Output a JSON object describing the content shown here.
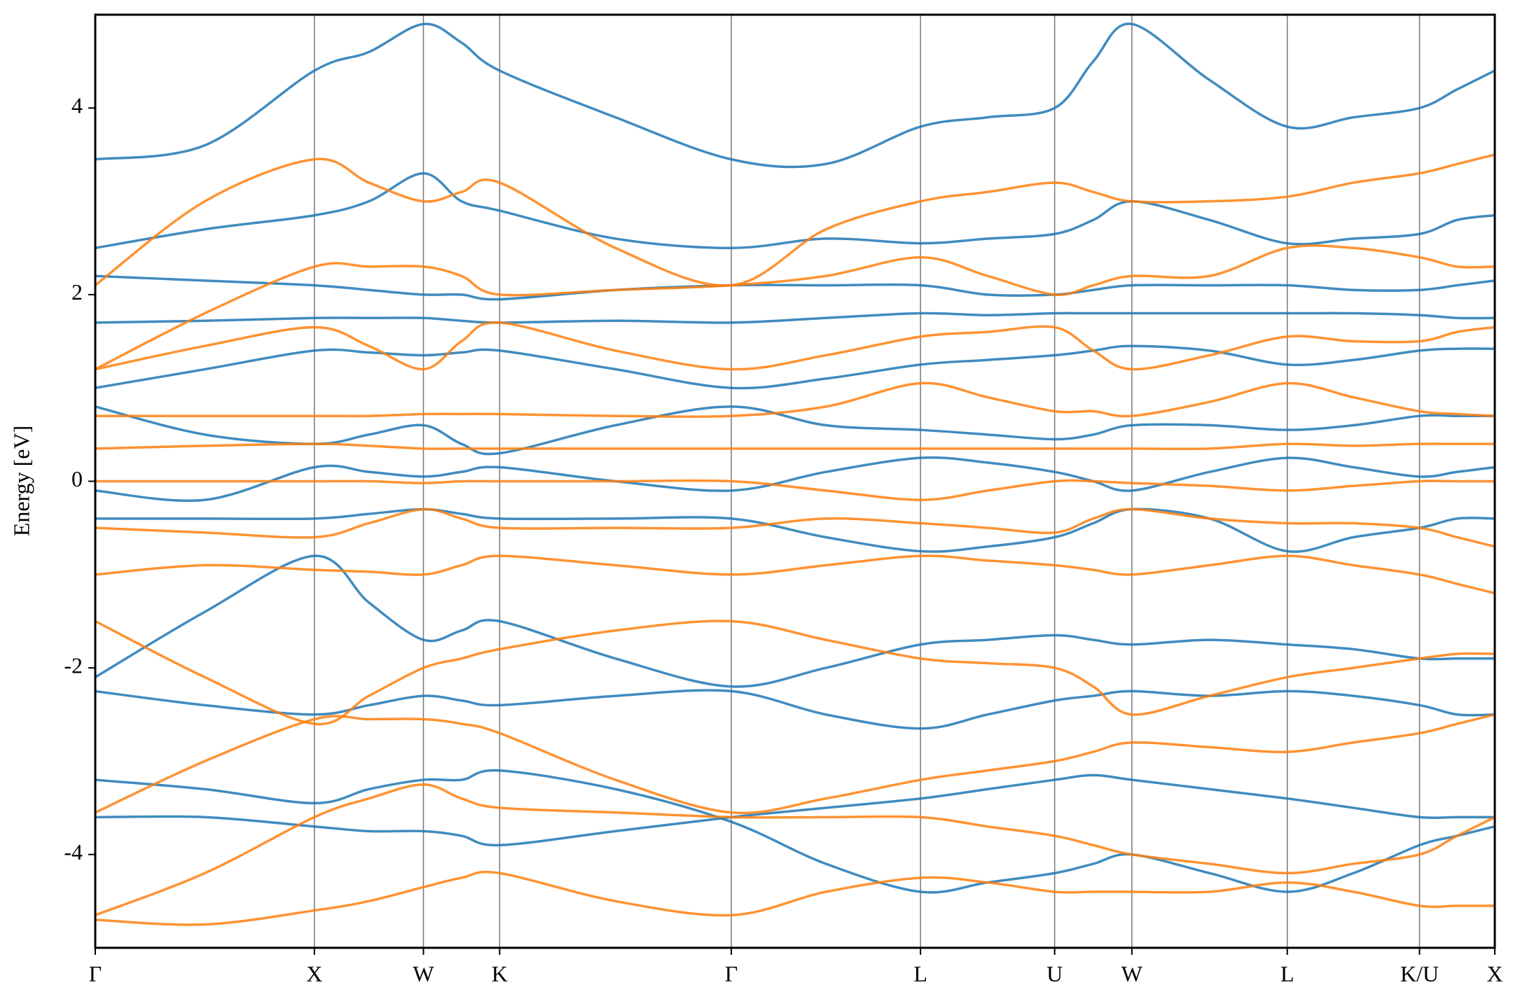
{
  "chart_data": {
    "type": "line",
    "ylabel": "Energy [eV]",
    "x": [
      0,
      1.135,
      2.27,
      2.835,
      3.4,
      3.795,
      4.19,
      5.39,
      6.59,
      7.57,
      8.55,
      9.245,
      9.94,
      10.34,
      10.74,
      11.545,
      12.35,
      13.035,
      13.72,
      14.11,
      14.5
    ],
    "xlim": [
      0,
      14.5
    ],
    "xticks": [
      {
        "value": 0,
        "label": "Γ"
      },
      {
        "value": 2.27,
        "label": "X"
      },
      {
        "value": 3.4,
        "label": "W"
      },
      {
        "value": 4.19,
        "label": "K"
      },
      {
        "value": 6.59,
        "label": "Γ"
      },
      {
        "value": 8.55,
        "label": "L"
      },
      {
        "value": 9.94,
        "label": "U"
      },
      {
        "value": 10.74,
        "label": "W"
      },
      {
        "value": 12.35,
        "label": "L"
      },
      {
        "value": 13.72,
        "label": "K/U"
      },
      {
        "value": 14.5,
        "label": "X"
      }
    ],
    "ylim": [
      -5,
      5
    ],
    "yticks": [
      -4,
      -2,
      0,
      2,
      4
    ],
    "grid": true,
    "series": [
      {
        "color": "#1f77b4",
        "values": [
          3.45,
          3.6,
          4.4,
          4.6,
          4.9,
          4.7,
          4.4,
          3.9,
          3.45,
          3.4,
          3.8,
          3.9,
          4.0,
          4.5,
          4.9,
          4.3,
          3.8,
          3.9,
          4.0,
          4.2,
          4.4
        ]
      },
      {
        "color": "#1f77b4",
        "values": [
          2.5,
          2.7,
          2.85,
          3.0,
          3.3,
          3.0,
          2.9,
          2.6,
          2.5,
          2.6,
          2.55,
          2.6,
          2.65,
          2.8,
          3.0,
          2.8,
          2.55,
          2.6,
          2.65,
          2.8,
          2.85
        ]
      },
      {
        "color": "#1f77b4",
        "values": [
          2.2,
          2.15,
          2.1,
          2.05,
          2.0,
          2.0,
          1.95,
          2.05,
          2.1,
          2.1,
          2.1,
          2.0,
          2.0,
          2.05,
          2.1,
          2.1,
          2.1,
          2.05,
          2.05,
          2.1,
          2.15
        ]
      },
      {
        "color": "#1f77b4",
        "values": [
          1.7,
          1.72,
          1.75,
          1.75,
          1.75,
          1.72,
          1.7,
          1.72,
          1.7,
          1.75,
          1.8,
          1.78,
          1.8,
          1.8,
          1.8,
          1.8,
          1.8,
          1.8,
          1.78,
          1.75,
          1.75
        ]
      },
      {
        "color": "#1f77b4",
        "values": [
          1.0,
          1.2,
          1.4,
          1.38,
          1.35,
          1.38,
          1.4,
          1.2,
          1.0,
          1.1,
          1.25,
          1.3,
          1.35,
          1.4,
          1.45,
          1.4,
          1.25,
          1.3,
          1.4,
          1.42,
          1.42
        ]
      },
      {
        "color": "#1f77b4",
        "values": [
          0.8,
          0.5,
          0.4,
          0.5,
          0.6,
          0.4,
          0.3,
          0.6,
          0.8,
          0.6,
          0.55,
          0.5,
          0.45,
          0.5,
          0.6,
          0.6,
          0.55,
          0.6,
          0.7,
          0.7,
          0.7
        ]
      },
      {
        "color": "#1f77b4",
        "values": [
          -0.1,
          -0.2,
          0.15,
          0.1,
          0.05,
          0.1,
          0.15,
          0.0,
          -0.1,
          0.1,
          0.25,
          0.2,
          0.1,
          0.0,
          -0.1,
          0.1,
          0.25,
          0.15,
          0.05,
          0.1,
          0.15
        ]
      },
      {
        "color": "#1f77b4",
        "values": [
          -0.4,
          -0.4,
          -0.4,
          -0.35,
          -0.3,
          -0.35,
          -0.4,
          -0.4,
          -0.4,
          -0.6,
          -0.75,
          -0.7,
          -0.6,
          -0.45,
          -0.3,
          -0.4,
          -0.75,
          -0.6,
          -0.5,
          -0.4,
          -0.4
        ]
      },
      {
        "color": "#1f77b4",
        "values": [
          -2.1,
          -1.4,
          -0.8,
          -1.3,
          -1.7,
          -1.6,
          -1.5,
          -1.9,
          -2.2,
          -2.0,
          -1.75,
          -1.7,
          -1.65,
          -1.7,
          -1.75,
          -1.7,
          -1.75,
          -1.8,
          -1.9,
          -1.9,
          -1.9
        ]
      },
      {
        "color": "#1f77b4",
        "values": [
          -2.25,
          -2.4,
          -2.5,
          -2.4,
          -2.3,
          -2.35,
          -2.4,
          -2.3,
          -2.25,
          -2.5,
          -2.65,
          -2.5,
          -2.35,
          -2.3,
          -2.25,
          -2.3,
          -2.25,
          -2.3,
          -2.4,
          -2.5,
          -2.5
        ]
      },
      {
        "color": "#1f77b4",
        "values": [
          -3.6,
          -3.6,
          -3.7,
          -3.75,
          -3.75,
          -3.8,
          -3.9,
          -3.75,
          -3.6,
          -3.5,
          -3.4,
          -3.3,
          -3.2,
          -3.15,
          -3.2,
          -3.3,
          -3.4,
          -3.5,
          -3.6,
          -3.6,
          -3.6
        ]
      },
      {
        "color": "#1f77b4",
        "values": [
          -3.2,
          -3.3,
          -3.45,
          -3.3,
          -3.2,
          -3.2,
          -3.1,
          -3.3,
          -3.65,
          -4.1,
          -4.4,
          -4.3,
          -4.2,
          -4.1,
          -4.0,
          -4.2,
          -4.4,
          -4.2,
          -3.9,
          -3.8,
          -3.7
        ]
      },
      {
        "color": "#ff7f0e",
        "values": [
          2.1,
          3.0,
          3.45,
          3.2,
          3.0,
          3.1,
          3.2,
          2.5,
          2.1,
          2.7,
          3.0,
          3.1,
          3.2,
          3.1,
          3.0,
          3.0,
          3.05,
          3.2,
          3.3,
          3.4,
          3.5
        ]
      },
      {
        "color": "#ff7f0e",
        "values": [
          1.2,
          1.8,
          2.3,
          2.3,
          2.3,
          2.2,
          2.0,
          2.05,
          2.1,
          2.2,
          2.4,
          2.2,
          2.0,
          2.1,
          2.2,
          2.2,
          2.5,
          2.5,
          2.4,
          2.3,
          2.3
        ]
      },
      {
        "color": "#ff7f0e",
        "values": [
          1.2,
          1.45,
          1.65,
          1.45,
          1.2,
          1.5,
          1.7,
          1.4,
          1.2,
          1.35,
          1.55,
          1.6,
          1.65,
          1.4,
          1.2,
          1.35,
          1.55,
          1.5,
          1.5,
          1.6,
          1.65
        ]
      },
      {
        "color": "#ff7f0e",
        "values": [
          0.7,
          0.7,
          0.7,
          0.7,
          0.72,
          0.72,
          0.72,
          0.7,
          0.7,
          0.8,
          1.05,
          0.9,
          0.75,
          0.75,
          0.7,
          0.85,
          1.05,
          0.9,
          0.75,
          0.72,
          0.7
        ]
      },
      {
        "color": "#ff7f0e",
        "values": [
          0.35,
          0.38,
          0.4,
          0.38,
          0.35,
          0.35,
          0.35,
          0.35,
          0.35,
          0.35,
          0.35,
          0.35,
          0.35,
          0.35,
          0.35,
          0.35,
          0.4,
          0.38,
          0.4,
          0.4,
          0.4
        ]
      },
      {
        "color": "#ff7f0e",
        "values": [
          0.0,
          0.0,
          0.0,
          0.0,
          -0.02,
          0.0,
          0.0,
          0.0,
          0.0,
          -0.1,
          -0.2,
          -0.1,
          0.0,
          0.0,
          -0.02,
          -0.05,
          -0.1,
          -0.05,
          0.0,
          0.0,
          0.0
        ]
      },
      {
        "color": "#ff7f0e",
        "values": [
          -0.5,
          -0.55,
          -0.6,
          -0.45,
          -0.3,
          -0.4,
          -0.5,
          -0.5,
          -0.5,
          -0.4,
          -0.45,
          -0.5,
          -0.55,
          -0.4,
          -0.3,
          -0.4,
          -0.45,
          -0.45,
          -0.5,
          -0.6,
          -0.7
        ]
      },
      {
        "color": "#ff7f0e",
        "values": [
          -1.0,
          -0.9,
          -0.95,
          -0.97,
          -1.0,
          -0.9,
          -0.8,
          -0.9,
          -1.0,
          -0.9,
          -0.8,
          -0.85,
          -0.9,
          -0.95,
          -1.0,
          -0.9,
          -0.8,
          -0.9,
          -1.0,
          -1.1,
          -1.2
        ]
      },
      {
        "color": "#ff7f0e",
        "values": [
          -1.5,
          -2.1,
          -2.6,
          -2.3,
          -2.0,
          -1.9,
          -1.8,
          -1.6,
          -1.5,
          -1.7,
          -1.9,
          -1.95,
          -2.0,
          -2.2,
          -2.5,
          -2.3,
          -2.1,
          -2.0,
          -1.9,
          -1.85,
          -1.85
        ]
      },
      {
        "color": "#ff7f0e",
        "values": [
          -3.55,
          -3.0,
          -2.55,
          -2.55,
          -2.55,
          -2.6,
          -2.7,
          -3.2,
          -3.55,
          -3.4,
          -3.2,
          -3.1,
          -3.0,
          -2.9,
          -2.8,
          -2.85,
          -2.9,
          -2.8,
          -2.7,
          -2.6,
          -2.5
        ]
      },
      {
        "color": "#ff7f0e",
        "values": [
          -4.65,
          -4.2,
          -3.6,
          -3.4,
          -3.25,
          -3.4,
          -3.5,
          -3.55,
          -3.6,
          -3.6,
          -3.6,
          -3.7,
          -3.8,
          -3.9,
          -4.0,
          -4.1,
          -4.2,
          -4.1,
          -4.0,
          -3.8,
          -3.6
        ]
      },
      {
        "color": "#ff7f0e",
        "values": [
          -4.7,
          -4.75,
          -4.6,
          -4.5,
          -4.35,
          -4.25,
          -4.2,
          -4.5,
          -4.65,
          -4.4,
          -4.25,
          -4.3,
          -4.4,
          -4.4,
          -4.4,
          -4.4,
          -4.3,
          -4.4,
          -4.55,
          -4.55,
          -4.55
        ]
      }
    ]
  }
}
